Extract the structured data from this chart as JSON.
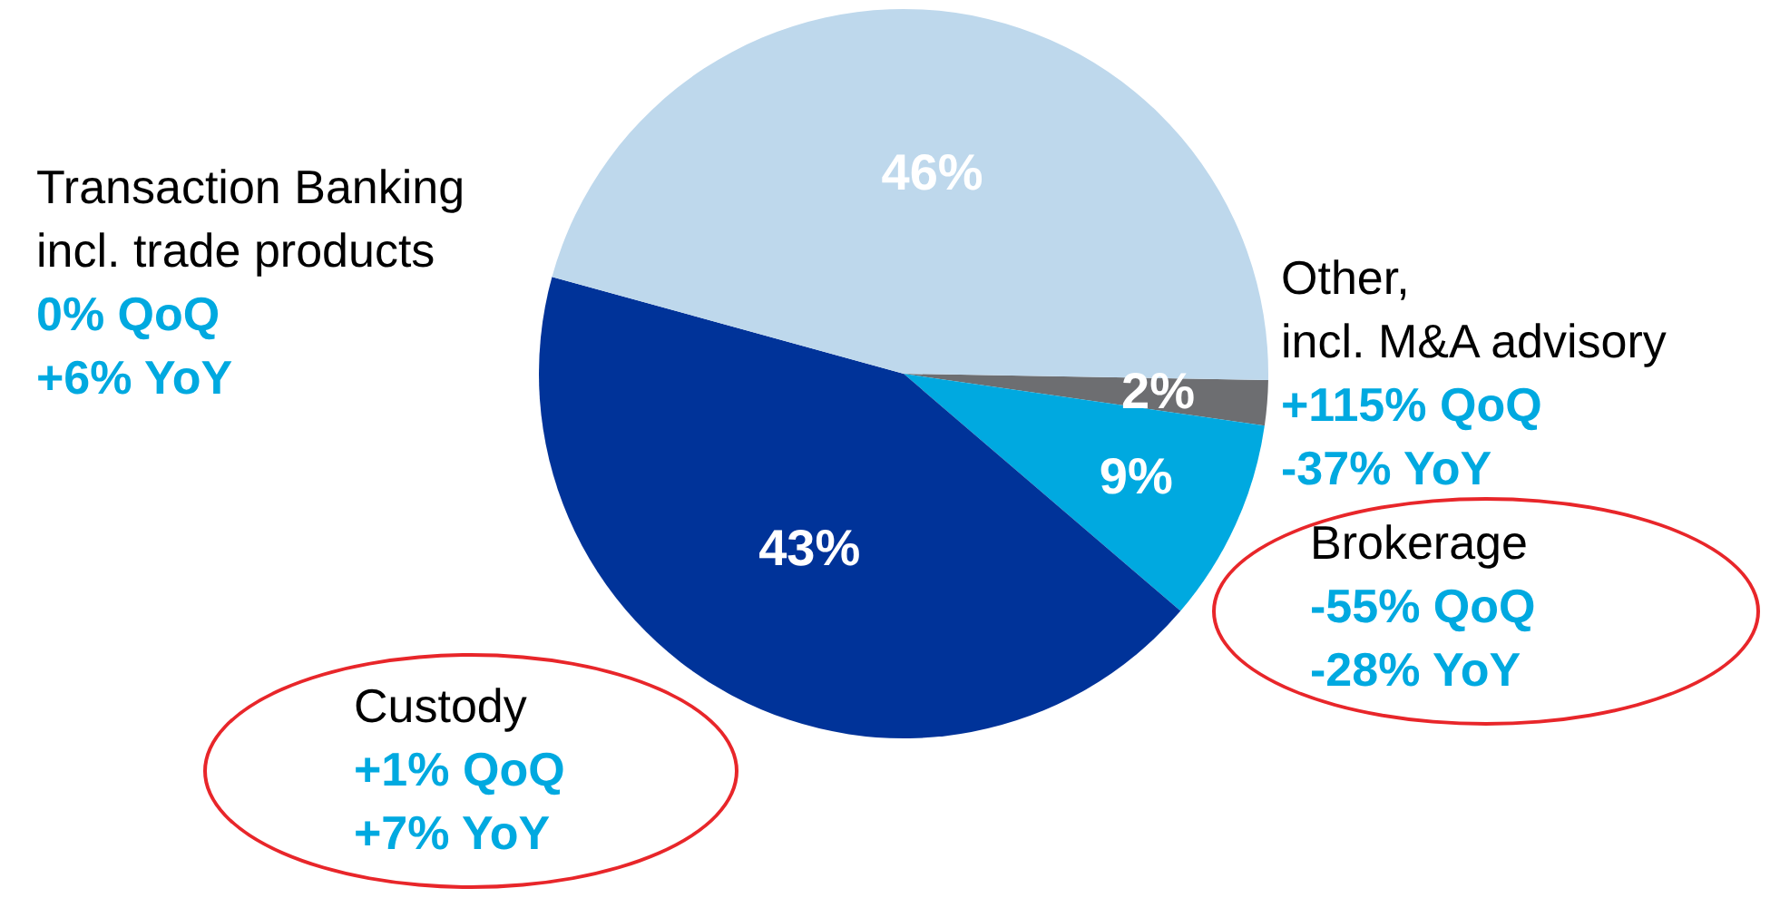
{
  "chart_data": {
    "type": "pie",
    "categories": [
      "Other,\nincl. M&A advisory",
      "Brokerage",
      "Custody",
      "Transaction Banking\nincl. trade products"
    ],
    "values": [
      2,
      9,
      43,
      46
    ],
    "colors": [
      "#6d6e71",
      "#00a9e0",
      "#003399",
      "#bed8ec"
    ],
    "value_labels": [
      "2%",
      "9%",
      "43%",
      "46%"
    ],
    "annotations": [
      "+115% QoQ",
      "-37% YoY",
      "-55% QoQ",
      "-28% YoY",
      "+1% QoQ",
      "+7% YoY",
      "0% QoQ",
      "+6% YoY"
    ]
  }
}
